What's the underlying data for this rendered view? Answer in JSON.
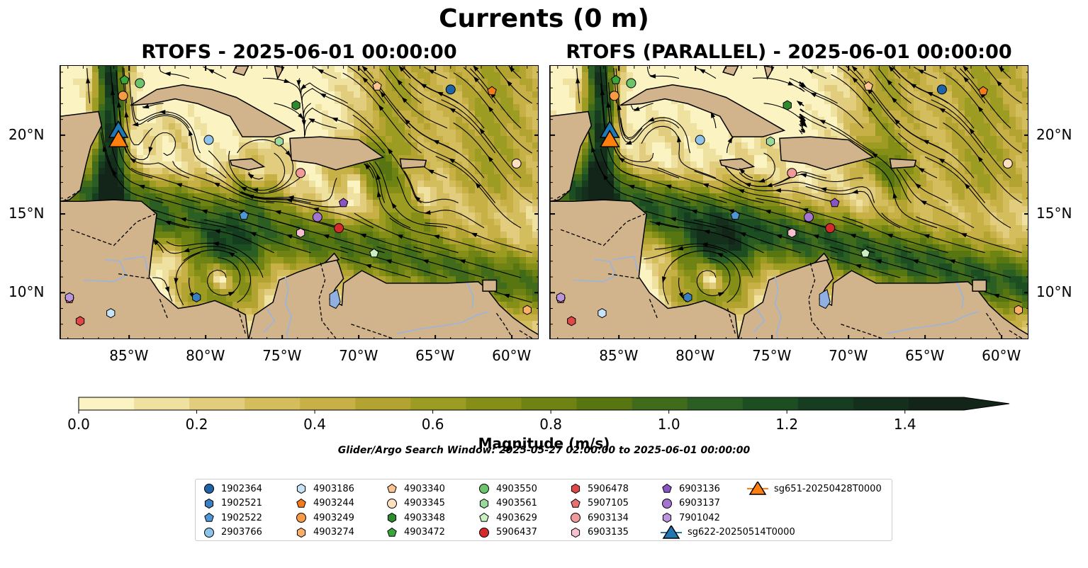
{
  "figure": {
    "title": "Currents (0 m)",
    "search_window": "Glider/Argo Search Window: 2025-05-27 02:00:00 to 2025-06-01 00:00:00"
  },
  "panels": [
    {
      "id": "left",
      "title": "RTOFS - 2025-06-01 00:00:00"
    },
    {
      "id": "right",
      "title": "RTOFS (PARALLEL) - 2025-06-01 00:00:00"
    }
  ],
  "axes": {
    "lon_ticks": [
      -85,
      -80,
      -75,
      -70,
      -65,
      -60
    ],
    "lon_labels": [
      "85°W",
      "80°W",
      "75°W",
      "70°W",
      "65°W",
      "60°W"
    ],
    "lat_ticks": [
      10,
      15,
      20
    ],
    "lat_labels": [
      "10°N",
      "15°N",
      "20°N"
    ],
    "lon_range": [
      -89.5,
      -58.2
    ],
    "lat_range": [
      7.0,
      24.4
    ]
  },
  "colorbar": {
    "label": "Magnitude (m/s)",
    "range": [
      0.0,
      1.5
    ],
    "extend": "max",
    "ticks": [
      0.0,
      0.2,
      0.4,
      0.6,
      0.8,
      1.0,
      1.2,
      1.4
    ],
    "tick_labels": [
      "0.0",
      "0.2",
      "0.4",
      "0.6",
      "0.8",
      "1.0",
      "1.2",
      "1.4"
    ],
    "colors": [
      "#fbf4c2",
      "#efe1a0",
      "#e2cd7f",
      "#d4bd5c",
      "#c7b045",
      "#b3a432",
      "#9c9c22",
      "#858f17",
      "#6e8313",
      "#577612",
      "#3f6b1a",
      "#2b5e22",
      "#1c4e22",
      "#163d1f",
      "#14301c",
      "#132518"
    ]
  },
  "colors": {
    "land": "#d2b48c",
    "lake": "#8fb0e0",
    "river": "#9fb4d6"
  },
  "markers": [
    {
      "label": "1902364",
      "shape": "circle",
      "color": "#1f63a8",
      "lon": -64.0,
      "lat": 22.9
    },
    {
      "label": "1902521",
      "shape": "hexagon",
      "color": "#3a7fc1",
      "lon": -80.6,
      "lat": 9.7
    },
    {
      "label": "1902522",
      "shape": "pentagon",
      "color": "#4f96d6",
      "lon": -77.5,
      "lat": 14.9
    },
    {
      "label": "2903766",
      "shape": "circle",
      "color": "#8ec3ea",
      "lon": -79.8,
      "lat": 19.7
    },
    {
      "label": "4903186",
      "shape": "hexagon",
      "color": "#c6e3f7",
      "lon": -86.2,
      "lat": 8.7
    },
    {
      "label": "4903244",
      "shape": "pentagon",
      "color": "#f47a1a",
      "lon": -61.3,
      "lat": 22.8
    },
    {
      "label": "4903249",
      "shape": "circle",
      "color": "#f99a45",
      "lon": -85.4,
      "lat": 22.5
    },
    {
      "label": "4903274",
      "shape": "hexagon",
      "color": "#fbb06a",
      "lon": -59.0,
      "lat": 8.9
    },
    {
      "label": "4903340",
      "shape": "pentagon",
      "color": "#fcc590",
      "lon": -68.8,
      "lat": 23.1
    },
    {
      "label": "4903345",
      "shape": "circle",
      "color": "#fde0c0",
      "lon": -59.7,
      "lat": 18.2
    },
    {
      "label": "4903348",
      "shape": "hexagon",
      "color": "#2d8a2d",
      "lon": -74.1,
      "lat": 21.9
    },
    {
      "label": "4903472",
      "shape": "pentagon",
      "color": "#3aa63a",
      "lon": -85.3,
      "lat": 23.5
    },
    {
      "label": "4903550",
      "shape": "circle",
      "color": "#6cc46c",
      "lon": -84.3,
      "lat": 23.3
    },
    {
      "label": "4903561",
      "shape": "hexagon",
      "color": "#9bd89b",
      "lon": -75.2,
      "lat": 19.6
    },
    {
      "label": "4903629",
      "shape": "pentagon",
      "color": "#c9efc2",
      "lon": -69.0,
      "lat": 12.5
    },
    {
      "label": "5906437",
      "shape": "circle",
      "color": "#d42a2a",
      "lon": -71.3,
      "lat": 14.1
    },
    {
      "label": "5906478",
      "shape": "hexagon",
      "color": "#e04848",
      "lon": -88.2,
      "lat": 8.2
    },
    {
      "label": "5907105",
      "shape": "pentagon",
      "color": "#e87070",
      "lon": -88.9,
      "lat": 9.6
    },
    {
      "label": "6903134",
      "shape": "circle",
      "color": "#f29a9a",
      "lon": -73.8,
      "lat": 17.6
    },
    {
      "label": "6903135",
      "shape": "hexagon",
      "color": "#f6c0cf",
      "lon": -73.8,
      "lat": 13.8
    },
    {
      "label": "6903136",
      "shape": "pentagon",
      "color": "#8a55c2",
      "lon": -71.0,
      "lat": 15.7
    },
    {
      "label": "6903137",
      "shape": "circle",
      "color": "#a374d0",
      "lon": -72.7,
      "lat": 14.8
    },
    {
      "label": "7901042",
      "shape": "hexagon",
      "color": "#bb95de",
      "lon": -88.9,
      "lat": 9.7
    },
    {
      "label": "sg622-20250514T0000",
      "shape": "triangle",
      "color": "#1f77b4",
      "lon": -85.7,
      "lat": 20.3
    },
    {
      "label": "sg651-20250428T0000",
      "shape": "triangle",
      "color": "#ff7f0e",
      "lon": -85.7,
      "lat": 19.7
    }
  ]
}
